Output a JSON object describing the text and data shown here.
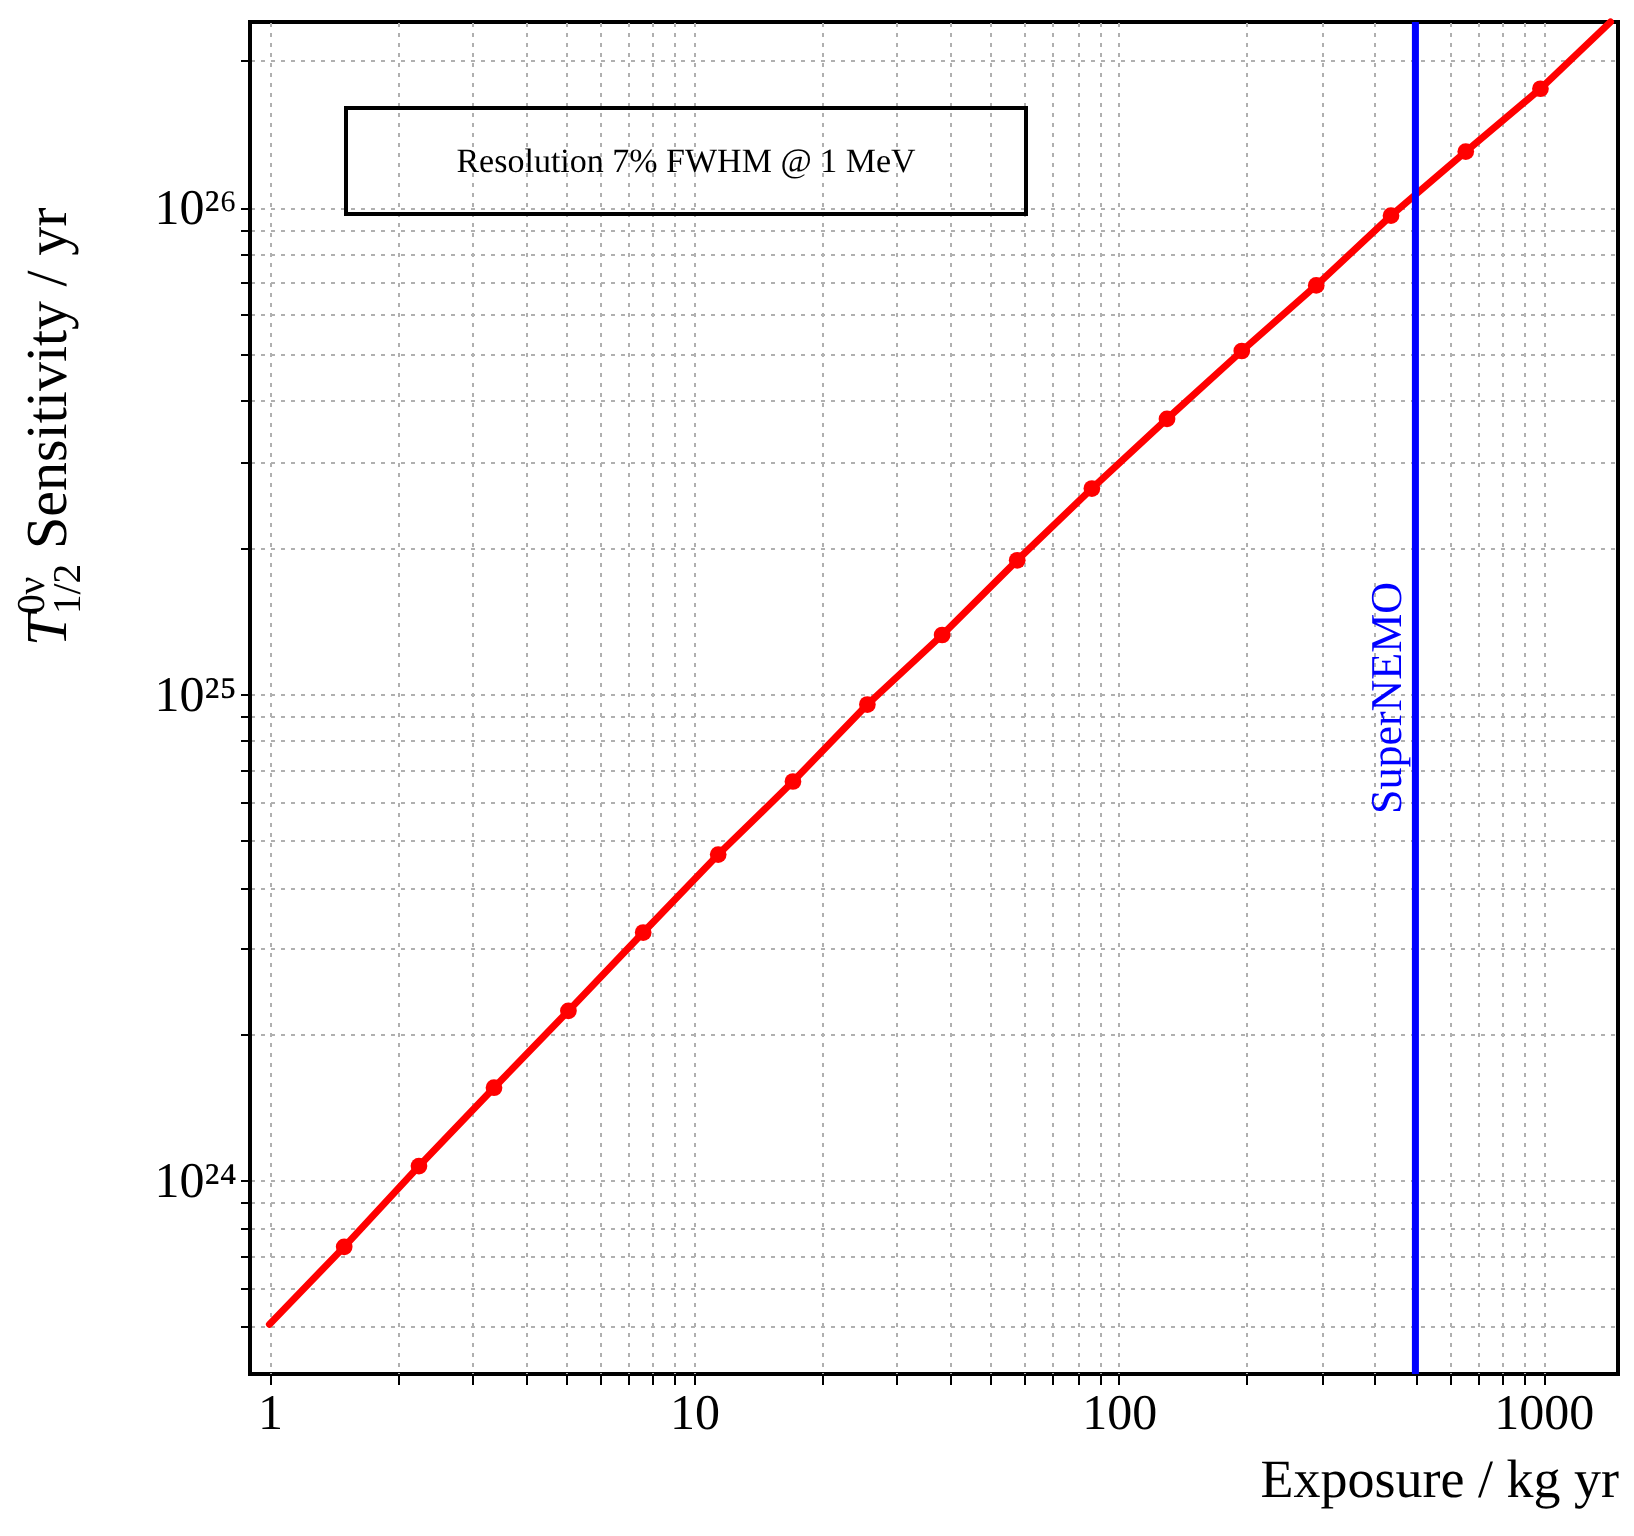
{
  "chart_data": {
    "type": "line",
    "xlabel": "Exposure / kg yr",
    "ylabel": "T$^{0ν}$$_{1/2}$ Sensitivity / yr",
    "log": "xy",
    "grid": true,
    "xlim": [
      0.9,
      1500
    ],
    "ylim": [
      4e+23,
      2.4e+26
    ],
    "xticks": [
      1,
      {
        "value": 2,
        "label": null
      },
      {
        "value": 3,
        "label": null
      },
      {
        "value": 4,
        "label": null
      },
      {
        "value": 5,
        "label": null
      },
      {
        "value": 6,
        "label": null
      },
      {
        "value": 7,
        "label": null
      },
      {
        "value": 8,
        "label": null
      },
      {
        "value": 9,
        "label": null
      },
      10,
      {
        "value": 20,
        "label": null
      },
      {
        "value": 30,
        "label": null
      },
      {
        "value": 40,
        "label": null
      },
      {
        "value": 50,
        "label": null
      },
      {
        "value": 60,
        "label": null
      },
      {
        "value": 70,
        "label": null
      },
      {
        "value": 80,
        "label": null
      },
      {
        "value": 90,
        "label": null
      },
      100,
      {
        "value": 200,
        "label": null
      },
      {
        "value": 300,
        "label": null
      },
      {
        "value": 400,
        "label": null
      },
      {
        "value": 500,
        "label": null
      },
      {
        "value": 600,
        "label": null
      },
      {
        "value": 700,
        "label": null
      },
      {
        "value": 800,
        "label": null
      },
      {
        "value": 900,
        "label": null
      },
      1000
    ],
    "yticks": [
      {
        "value": 5e+23,
        "label": null
      },
      {
        "value": 6e+23,
        "label": null
      },
      {
        "value": 7e+23,
        "label": null
      },
      {
        "value": 8e+23,
        "label": null
      },
      {
        "value": 9e+23,
        "label": null
      },
      {
        "value": 1e+24,
        "label": "10²⁴"
      },
      {
        "value": 2e+24,
        "label": null
      },
      {
        "value": 3e+24,
        "label": null
      },
      {
        "value": 4e+24,
        "label": null
      },
      {
        "value": 5e+24,
        "label": null
      },
      {
        "value": 6e+24,
        "label": null
      },
      {
        "value": 7e+24,
        "label": null
      },
      {
        "value": 8e+24,
        "label": null
      },
      {
        "value": 9e+24,
        "label": null
      },
      {
        "value": 1e+25,
        "label": "10²⁵"
      },
      {
        "value": 2e+25,
        "label": null
      },
      {
        "value": 3e+25,
        "label": null
      },
      {
        "value": 4e+25,
        "label": null
      },
      {
        "value": 5e+25,
        "label": null
      },
      {
        "value": 6e+25,
        "label": null
      },
      {
        "value": 7e+25,
        "label": null
      },
      {
        "value": 8e+25,
        "label": null
      },
      {
        "value": 9e+25,
        "label": null
      },
      {
        "value": 1e+26,
        "label": "10²⁶"
      },
      {
        "value": 2e+26,
        "label": null
      }
    ],
    "series": [
      {
        "line_style": "solid",
        "color": "#ff0000",
        "x": [
          1,
          1.5,
          2.25,
          3.38,
          5.06,
          7.59,
          11.4,
          17.1,
          25.6,
          38.4,
          57.7,
          86.5,
          130,
          195,
          292,
          438,
          657,
          985,
          1440
        ],
        "values": [
          5.06e+23,
          7.3e+23,
          1.07e+24,
          1.55e+24,
          2.23e+24,
          3.23e+24,
          4.67e+24,
          6.6e+24,
          9.5e+24,
          1.32e+25,
          1.88e+25,
          2.64e+25,
          3.67e+25,
          5.06e+25,
          6.9e+25,
          9.6e+25,
          1.3e+26,
          1.75e+26,
          2.4e+26
        ]
      },
      {
        "type": "scatter",
        "marker": "circle",
        "color": "#ff0000",
        "x": [
          1.5,
          2.25,
          3.38,
          5.06,
          7.59,
          11.4,
          17.1,
          25.6,
          38.4,
          57.7,
          86.5,
          130,
          195,
          292,
          438,
          657,
          985
        ],
        "values": [
          7.3e+23,
          1.07e+24,
          1.55e+24,
          2.23e+24,
          3.23e+24,
          4.67e+24,
          6.6e+24,
          9.5e+24,
          1.32e+25,
          1.88e+25,
          2.64e+25,
          3.67e+25,
          5.06e+25,
          6.9e+25,
          9.6e+25,
          1.3e+26,
          1.75e+26
        ]
      }
    ],
    "ref_lines": [
      {
        "axis": "x",
        "value": 500,
        "label": "SuperNEMO",
        "color": "#0000ff"
      }
    ],
    "annotations": [
      "Resolution 7% FWHM @ 1 MeV"
    ]
  }
}
